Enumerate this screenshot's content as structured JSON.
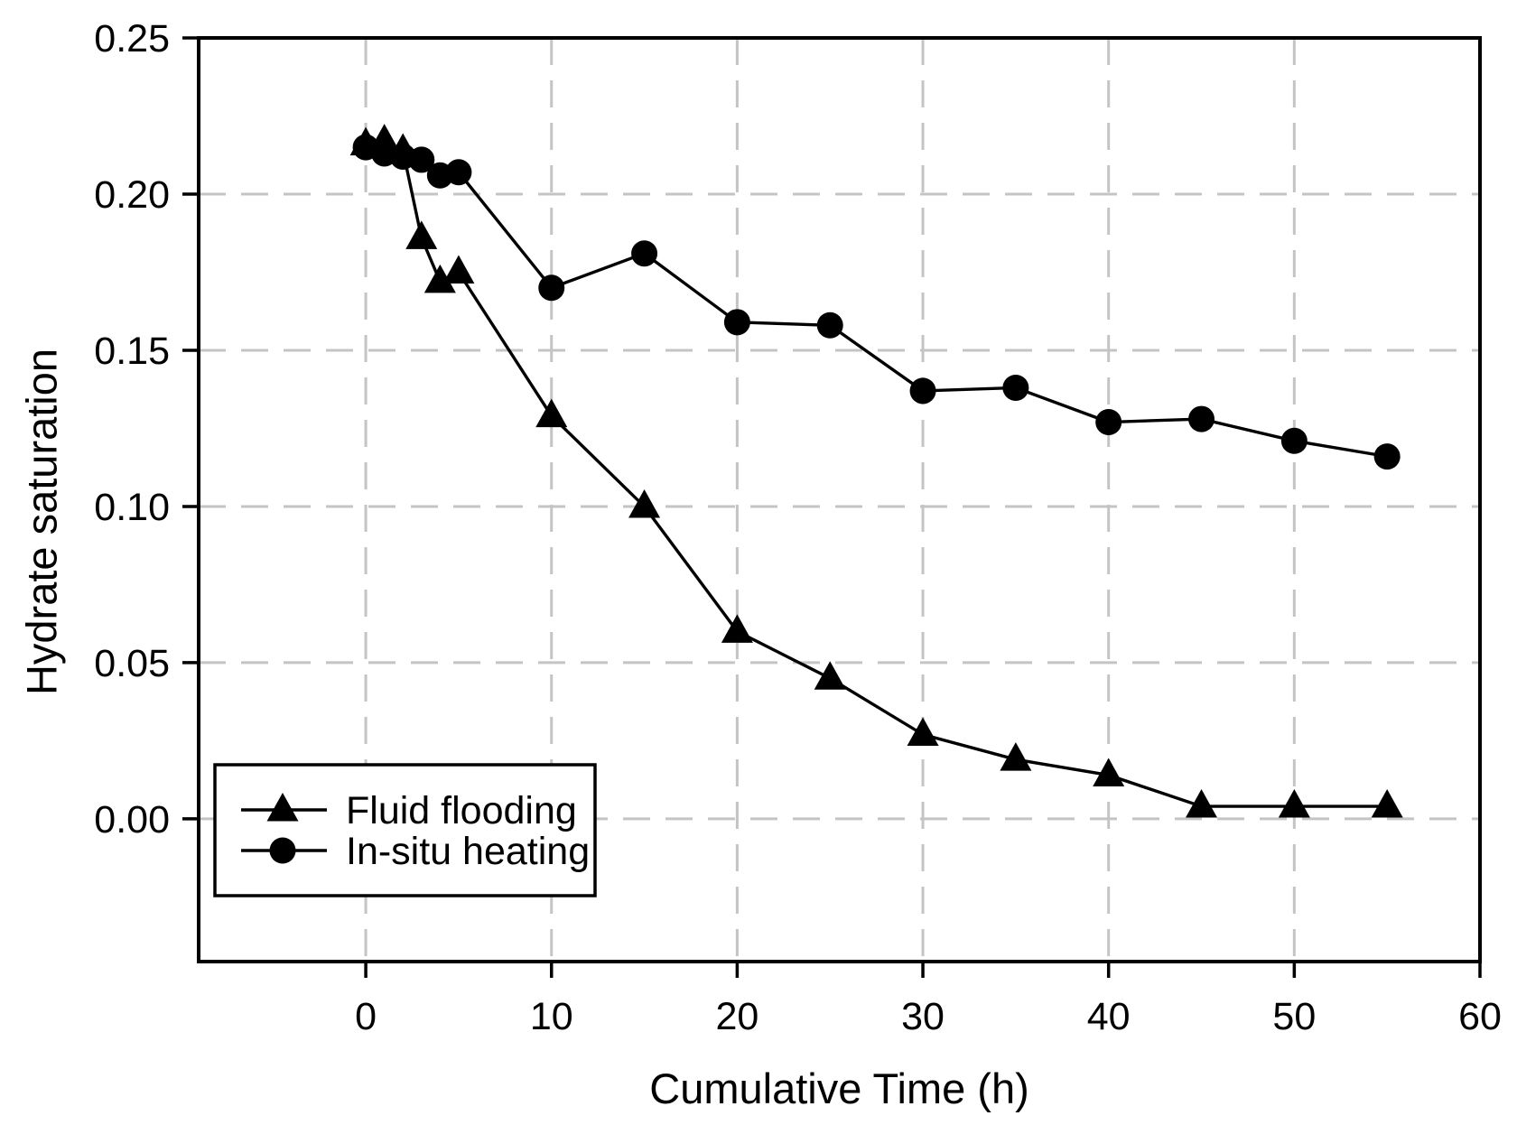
{
  "chart_data": {
    "type": "line",
    "title": "",
    "xlabel": "Cumulative Time (h)",
    "ylabel": "Hydrate saturation",
    "xlim": [
      -9.0,
      60
    ],
    "ylim": [
      -0.0457,
      0.25
    ],
    "x_ticks": {
      "values": [
        0,
        10,
        20,
        30,
        40,
        50,
        60
      ],
      "labels": [
        "0",
        "10",
        "20",
        "30",
        "40",
        "50",
        "60"
      ]
    },
    "y_ticks": {
      "values": [
        0.0,
        0.05,
        0.1,
        0.15,
        0.2,
        0.25
      ],
      "labels": [
        "0.00",
        "0.05",
        "0.10",
        "0.15",
        "0.20",
        "0.25"
      ]
    },
    "grid": "dashed gray, horizontal and vertical at major ticks",
    "legend_position": "inside lower-left",
    "series": [
      {
        "name": "Fluid flooding",
        "marker": "triangle",
        "x": [
          0,
          1,
          2,
          3,
          4,
          5,
          10,
          15,
          20,
          25,
          30,
          35,
          40,
          45,
          50,
          55
        ],
        "values": [
          0.216,
          0.217,
          0.214,
          0.186,
          0.172,
          0.175,
          0.129,
          0.1,
          0.06,
          0.045,
          0.027,
          0.019,
          0.014,
          0.004,
          0.004,
          0.004
        ]
      },
      {
        "name": "In-situ heating",
        "marker": "circle",
        "x": [
          0,
          1,
          2,
          3,
          4,
          5,
          10,
          15,
          20,
          25,
          30,
          35,
          40,
          45,
          50,
          55
        ],
        "values": [
          0.215,
          0.213,
          0.212,
          0.211,
          0.206,
          0.207,
          0.17,
          0.181,
          0.159,
          0.158,
          0.137,
          0.138,
          0.127,
          0.128,
          0.121,
          0.116
        ]
      }
    ]
  },
  "colors": {
    "foreground": "#000000",
    "grid": "#c4c4c4",
    "background": "#ffffff"
  }
}
